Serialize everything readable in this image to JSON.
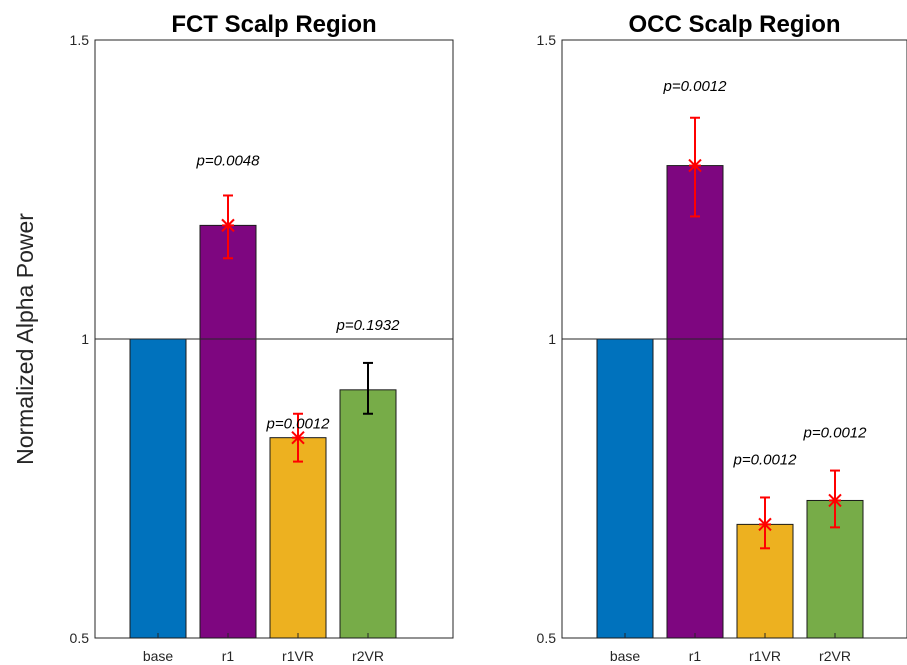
{
  "ylabel": "Normalized Alpha Power",
  "chart_data": [
    {
      "type": "bar",
      "title": "FCT Scalp Region",
      "categories": [
        "base",
        "r1",
        "r1VR",
        "r2VR"
      ],
      "ylabel": "Normalized Alpha Power",
      "ylim": [
        0.5,
        1.5
      ],
      "yticks": [
        "0.5",
        "1",
        "1.5"
      ],
      "reference_line": 1,
      "values": [
        1.0,
        1.19,
        0.835,
        0.915
      ],
      "error_low": [
        null,
        1.135,
        0.795,
        0.875
      ],
      "error_high": [
        null,
        1.24,
        0.875,
        0.96
      ],
      "significant": [
        false,
        true,
        true,
        false
      ],
      "pvalues": [
        "",
        "p=0.0048",
        "p=0.0012",
        "p=0.1932"
      ],
      "pvalue_y": [
        null,
        1.29,
        0.85,
        1.015
      ]
    },
    {
      "type": "bar",
      "title": "OCC Scalp Region",
      "categories": [
        "base",
        "r1",
        "r1VR",
        "r2VR"
      ],
      "ylim": [
        0.5,
        1.5
      ],
      "yticks": [
        "0.5",
        "1",
        "1.5"
      ],
      "reference_line": 1,
      "values": [
        1.0,
        1.29,
        0.69,
        0.73
      ],
      "error_low": [
        null,
        1.205,
        0.65,
        0.685
      ],
      "error_high": [
        null,
        1.37,
        0.735,
        0.78
      ],
      "significant": [
        false,
        true,
        true,
        true
      ],
      "pvalues": [
        "",
        "p=0.0012",
        "p=0.0012",
        "p=0.0012"
      ],
      "pvalue_y": [
        null,
        1.415,
        0.79,
        0.835
      ]
    }
  ],
  "colors": {
    "bars": [
      "#0072BD",
      "#7E0680",
      "#EDB120",
      "#77AC48"
    ],
    "significant_error": "#FF0000",
    "nonsignificant_error": "#000000",
    "axis": "#262626",
    "reference_line": "#262626"
  }
}
